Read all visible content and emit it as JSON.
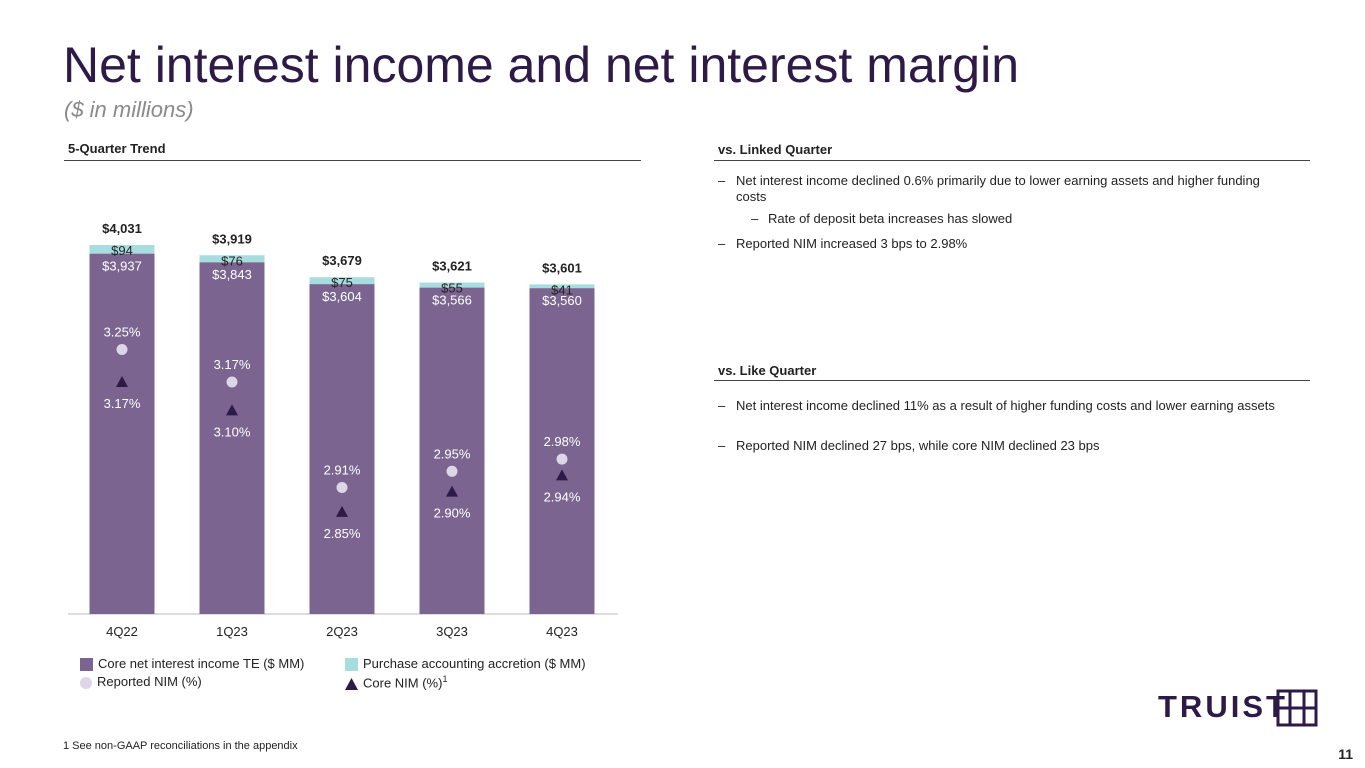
{
  "title": "Net interest income and net interest margin",
  "subtitle": "($ in millions)",
  "left_section": {
    "heading": "5-Quarter Trend"
  },
  "linked_quarter": {
    "heading": "vs. Linked Quarter",
    "bullets": [
      "Net interest income declined 0.6% primarily due to lower earning assets and higher funding costs",
      "Rate of deposit beta increases has slowed",
      "Reported NIM increased 3 bps to 2.98%"
    ]
  },
  "like_quarter": {
    "heading": "vs. Like Quarter",
    "bullets": [
      "Net interest income declined 11% as a result of higher funding costs and lower earning assets",
      "Reported NIM declined 27 bps, while core NIM declined 23 bps"
    ]
  },
  "dash": "–",
  "legend": {
    "core": "Core net interest income TE ($ MM)",
    "accretion": "Purchase accounting accretion ($ MM)",
    "reported_nim": "Reported NIM (%)",
    "core_nim": "Core NIM (%)",
    "core_nim_sup": "1"
  },
  "footnote": "1  See non-GAAP reconciliations in the appendix",
  "page_number": "11",
  "logo_text": "TRUIST",
  "colors": {
    "core": "#7b6590",
    "accretion": "#a8dde0",
    "reported_nim": "#ddd6e6",
    "core_nim": "#2e1a47",
    "brand": "#2e1a47"
  },
  "chart_data": {
    "type": "bar",
    "stacked": true,
    "categories": [
      "4Q22",
      "1Q23",
      "2Q23",
      "3Q23",
      "4Q23"
    ],
    "series": [
      {
        "name": "Core net interest income TE ($ MM)",
        "values": [
          3937,
          3843,
          3604,
          3566,
          3560
        ],
        "labels": [
          "$3,937",
          "$3,843",
          "$3,604",
          "$3,566",
          "$3,560"
        ]
      },
      {
        "name": "Purchase accounting accretion ($ MM)",
        "values": [
          94,
          76,
          75,
          55,
          41
        ],
        "labels": [
          "$94",
          "$76",
          "$75",
          "$55",
          "$41"
        ]
      }
    ],
    "totals": [
      "$4,031",
      "$3,919",
      "$3,679",
      "$3,621",
      "$3,601"
    ],
    "reported_nim": {
      "name": "Reported NIM (%)",
      "values": [
        3.25,
        3.17,
        2.91,
        2.95,
        2.98
      ],
      "labels": [
        "3.25%",
        "3.17%",
        "2.91%",
        "2.95%",
        "2.98%"
      ]
    },
    "core_nim": {
      "name": "Core NIM (%)",
      "values": [
        3.17,
        3.1,
        2.85,
        2.9,
        2.94
      ],
      "labels": [
        "3.17%",
        "3.10%",
        "2.85%",
        "2.90%",
        "2.94%"
      ]
    },
    "ylim_bars": [
      0,
      4031
    ],
    "ylim_nim": [
      2.5,
      3.5
    ]
  }
}
